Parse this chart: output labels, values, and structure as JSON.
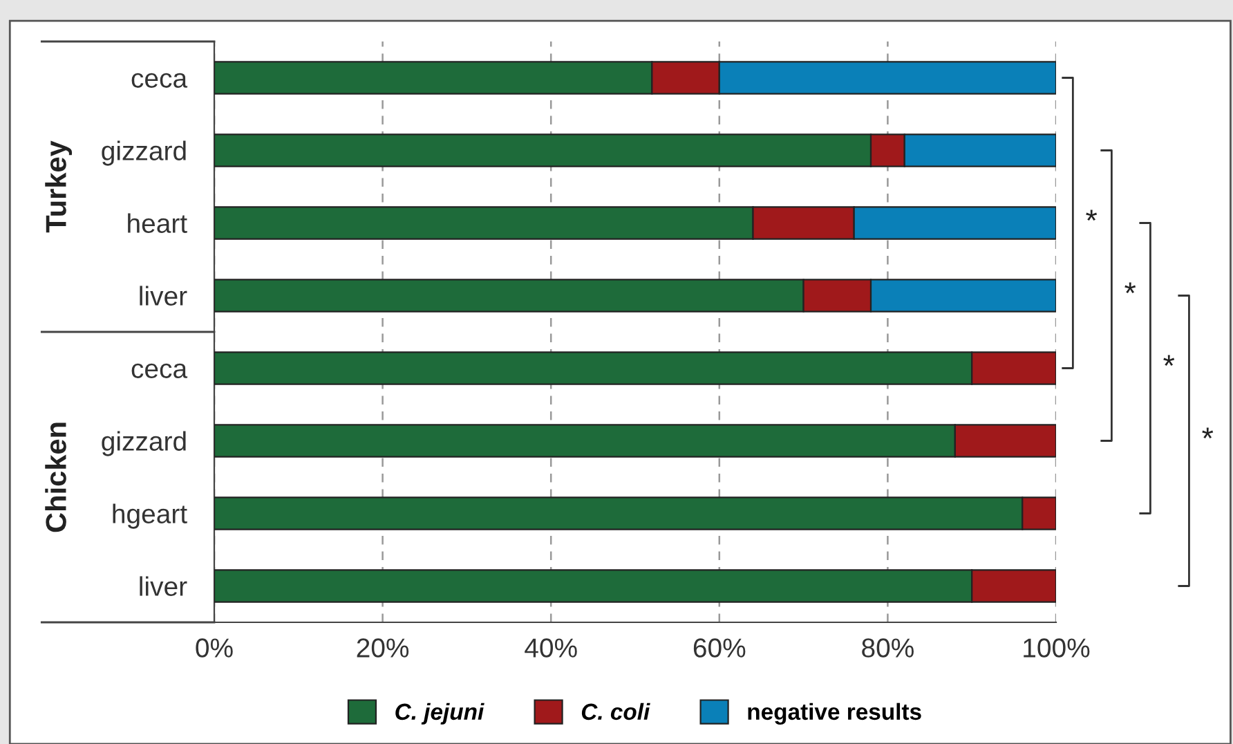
{
  "chart_data": {
    "type": "bar",
    "orientation": "horizontal",
    "stacked": true,
    "categories": [
      "ceca",
      "gizzard",
      "heart",
      "liver",
      "ceca",
      "gizzard",
      "hgeart",
      "liver"
    ],
    "series": [
      {
        "name": "C. jejuni",
        "color": "#1e6b3a",
        "values": [
          52,
          78,
          64,
          70,
          90,
          88,
          96,
          90
        ]
      },
      {
        "name": "C. coli",
        "color": "#a0191b",
        "values": [
          8,
          4,
          12,
          8,
          10,
          12,
          4,
          10
        ]
      },
      {
        "name": "negative results",
        "color": "#0a80b8",
        "values": [
          40,
          18,
          24,
          22,
          null,
          null,
          null,
          null
        ]
      }
    ],
    "xlim": [
      0,
      100
    ],
    "xticks": [
      {
        "value": 0,
        "label": "0%"
      },
      {
        "value": 20,
        "label": "20%"
      },
      {
        "value": 40,
        "label": "40%"
      },
      {
        "value": 60,
        "label": "60%"
      },
      {
        "value": 80,
        "label": "80%"
      },
      {
        "value": 100,
        "label": "100%"
      }
    ],
    "grid": "x",
    "legend": "bottom",
    "annotations": [
      "Turkey",
      "Chicken",
      "*",
      "*",
      "*",
      "*"
    ]
  }
}
